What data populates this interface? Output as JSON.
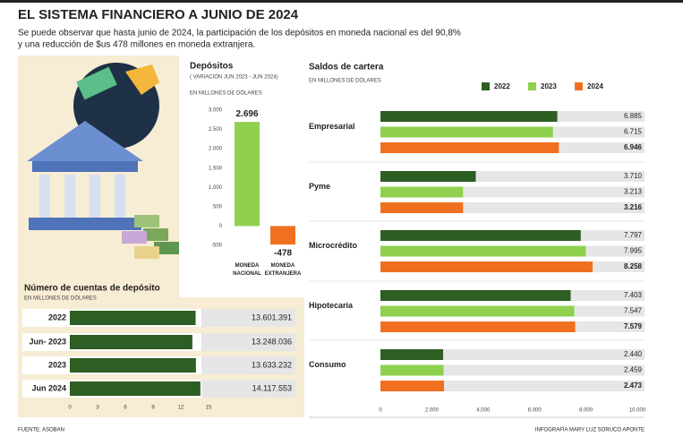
{
  "header": {
    "title": "EL SISTEMA FINANCIERO A JUNIO DE 2024",
    "subtitle": [
      "Se puede observar que hasta junio de 2024, la participación de los depósitos en moneda nacional es del 90,8%",
      "y una reducción de $us 478 millones en moneda extranjera."
    ]
  },
  "chart_data": [
    {
      "type": "bar",
      "title": "Depósitos",
      "subtitle": "( VARIACIÓN JUN 2023 - JUN 2024)",
      "y_label": "EN MILLONES DE DÓLARES",
      "categories": [
        "MONEDA NACIONAL",
        "MONEDA EXTRANJERA"
      ],
      "values": [
        2696,
        -478
      ],
      "value_labels": [
        "2.696",
        "-478"
      ],
      "colors": [
        "#8fd14f",
        "#f07020"
      ],
      "ylim": [
        -500,
        3000
      ],
      "yticks": [
        {
          "value": 3000,
          "label": "3.000"
        },
        {
          "value": 2500,
          "label": "2.500"
        },
        {
          "value": 2000,
          "label": "2.000"
        },
        {
          "value": 1500,
          "label": "1.500"
        },
        {
          "value": 1000,
          "label": "1.000"
        },
        500,
        0,
        -500
      ]
    },
    {
      "type": "hbar",
      "title": "Saldos de cartera",
      "subtitle": "EN MILLONES DE DÓLARES",
      "categories": [
        "Empresarial",
        "Pyme",
        "Microcrédito",
        "Hipotecaria",
        "Consumo"
      ],
      "series": [
        {
          "name": "2022",
          "color": "#2d5e23",
          "values": [
            6885,
            3710,
            7797,
            7403,
            2440
          ],
          "value_labels": [
            "6.885",
            "3.710",
            "7.797",
            "7.403",
            "2.440"
          ]
        },
        {
          "name": "2023",
          "color": "#8fd14f",
          "values": [
            6715,
            3213,
            7995,
            7547,
            2459
          ],
          "value_labels": [
            "6.715",
            "3.213",
            "7.995",
            "7.547",
            "2.459"
          ]
        },
        {
          "name": "2024",
          "color": "#f07020",
          "values": [
            6946,
            3216,
            8258,
            7579,
            2473
          ],
          "value_labels": [
            "6.946",
            "3.216",
            "8.258",
            "7.579",
            "2.473"
          ]
        }
      ],
      "xlim": [
        0,
        10000
      ],
      "xticks": [
        0,
        {
          "value": 2000,
          "label": "2.000"
        },
        {
          "value": 4000,
          "label": "4.000"
        },
        {
          "value": 6000,
          "label": "6.000"
        },
        {
          "value": 8000,
          "label": "8.000"
        },
        {
          "value": 10000,
          "label": "10.000"
        }
      ]
    },
    {
      "type": "hbar",
      "title": "Número de cuentas de depósito",
      "subtitle": "EN MILLONES DE DÓLARES",
      "categories": [
        "2022",
        "Jun- 2023",
        "2023",
        "Jun 2024"
      ],
      "values": [
        13.601391,
        13.248036,
        13.633232,
        14.117553
      ],
      "value_labels": [
        "13.601.391",
        "13.248.036",
        "13.633.232",
        "14.117.553"
      ],
      "color": "#2d5e23",
      "xlim": [
        0,
        15
      ],
      "xticks": [
        0,
        3,
        6,
        9,
        12,
        15
      ]
    }
  ],
  "footer": {
    "source": "FUENTE: ASOBAN",
    "credit": "INFOGRAFÍA MARY LUZ SORUCO APONTE"
  }
}
